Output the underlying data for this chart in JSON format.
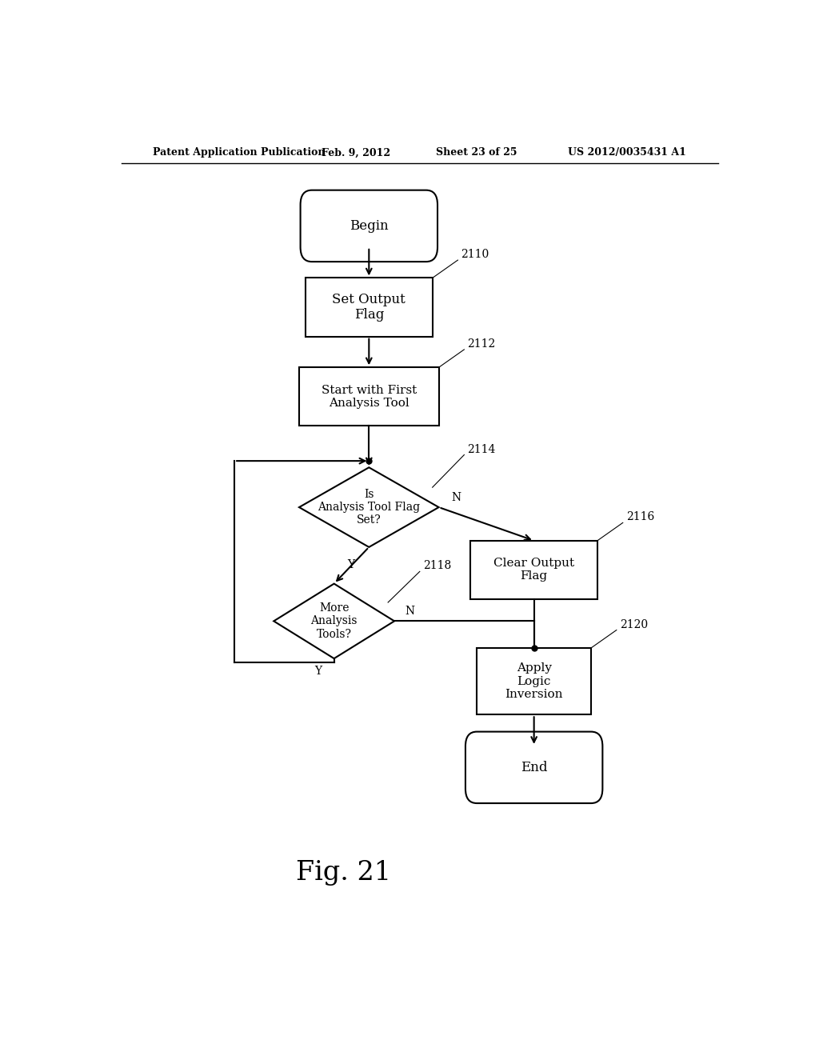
{
  "title_left": "Patent Application Publication",
  "title_mid": "Feb. 9, 2012",
  "title_sheet": "Sheet 23 of 25",
  "title_right": "US 2012/0035431 A1",
  "fig_label": "Fig. 21",
  "background_color": "#ffffff"
}
